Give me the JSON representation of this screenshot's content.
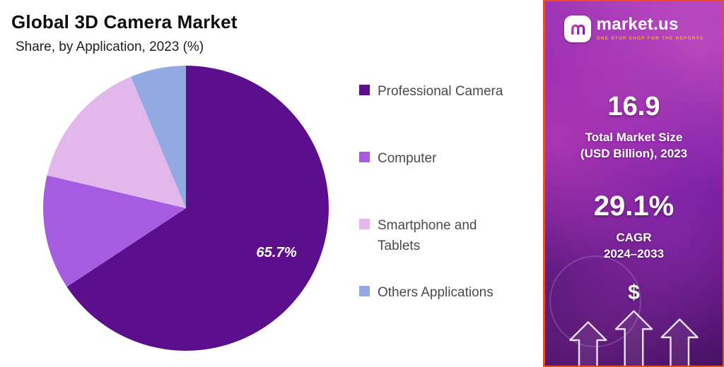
{
  "header": {
    "title": "Global 3D Camera Market",
    "subtitle": "Share, by Application, 2023 (%)"
  },
  "chart_data": {
    "type": "pie",
    "title": "Global 3D Camera Market",
    "subtitle": "Share, by Application, 2023 (%)",
    "labels": [
      "Professional Camera",
      "Computer",
      "Smartphone and Tablets",
      "Others Applications"
    ],
    "values": [
      65.7,
      13.0,
      15.0,
      6.3
    ],
    "colors": [
      "#5b0f8d",
      "#a55ce0",
      "#e1b7ec",
      "#93a9e2"
    ],
    "data_labels": [
      "65.7%",
      "",
      "",
      ""
    ],
    "start_angle_deg": 0,
    "direction": "clockwise",
    "legend_position": "right"
  },
  "legend": {
    "items": [
      {
        "label": "Professional Camera",
        "color": "#5b0f8d"
      },
      {
        "label": "Computer",
        "color": "#a55ce0"
      },
      {
        "label": "Smartphone and Tablets",
        "color": "#e1b7ec"
      },
      {
        "label": "Others Applications",
        "color": "#93a9e2"
      }
    ]
  },
  "sidebar": {
    "brand": {
      "name": "market.us",
      "tagline": "ONE STOP SHOP FOR THE REPORTS"
    },
    "market_size": {
      "value": "16.9",
      "label_line1": "Total Market Size",
      "label_line2": "(USD Billion), 2023"
    },
    "cagr": {
      "value": "29.1%",
      "label_line1": "CAGR",
      "label_line2": "2024–2033"
    },
    "dollar": "$"
  }
}
